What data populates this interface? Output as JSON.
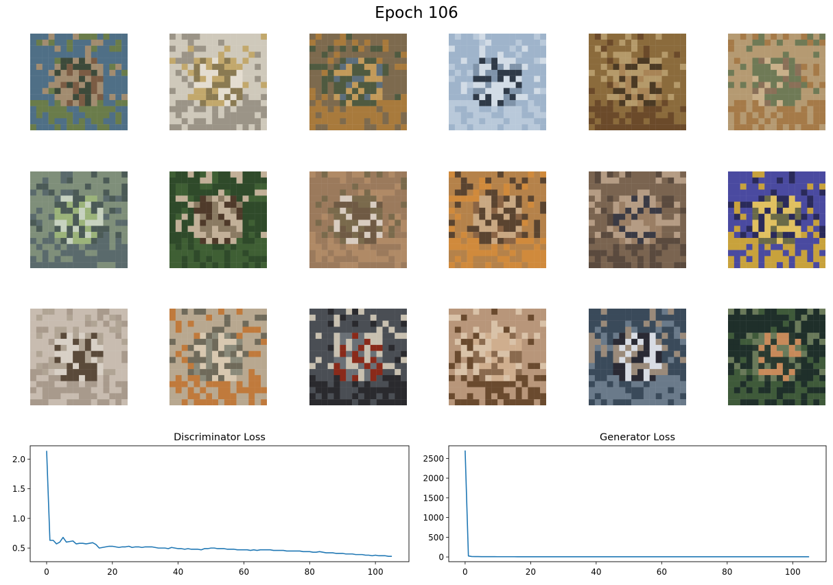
{
  "figure": {
    "title": "Epoch 106"
  },
  "samples": {
    "rows": [
      [
        {
          "palette": [
            "#4f6f86",
            "#6a7c4a",
            "#7b5c44",
            "#3d4a3a",
            "#a28c70"
          ]
        },
        {
          "palette": [
            "#cfc9bb",
            "#9b9487",
            "#e4ddd0",
            "#8a7a52",
            "#c2a86c"
          ]
        },
        {
          "palette": [
            "#7d6a4e",
            "#a87a3c",
            "#5c6e7c",
            "#c29a5a",
            "#4f5a40"
          ]
        },
        {
          "palette": [
            "#9fb4cb",
            "#b9c9da",
            "#2f3a48",
            "#7f93a9",
            "#d2dce6"
          ]
        },
        {
          "palette": [
            "#8b6b3c",
            "#6b4a2a",
            "#a88456",
            "#4b3a24",
            "#b59a6a"
          ]
        },
        {
          "palette": [
            "#b59a72",
            "#a57a48",
            "#8a7058",
            "#c9b08a",
            "#6f7a56"
          ]
        }
      ],
      [
        {
          "palette": [
            "#7f8f7a",
            "#5a6a6c",
            "#9bb37a",
            "#c7d2c0",
            "#4b5a56"
          ]
        },
        {
          "palette": [
            "#2f4a2a",
            "#3f5f34",
            "#8a7a62",
            "#4f3a2a",
            "#c2b098"
          ]
        },
        {
          "palette": [
            "#9b7a5c",
            "#b08a66",
            "#6f5a44",
            "#d8ccc0",
            "#7a6a4c"
          ]
        },
        {
          "palette": [
            "#b5824a",
            "#d08a3c",
            "#8a6444",
            "#c9a882",
            "#5a4430"
          ]
        },
        {
          "palette": [
            "#7a6450",
            "#5a4a3e",
            "#9a7e64",
            "#3a3a44",
            "#b59c84"
          ]
        },
        {
          "palette": [
            "#4a4aa0",
            "#c8a23c",
            "#6a6a48",
            "#e0c060",
            "#2a2a5a"
          ]
        }
      ],
      [
        {
          "palette": [
            "#c8bcb0",
            "#a89a8c",
            "#d8d0c6",
            "#5a4a3a",
            "#b0a494"
          ]
        },
        {
          "palette": [
            "#b8a890",
            "#c07a3c",
            "#8a8a7a",
            "#d8c8b0",
            "#6f6a5a"
          ]
        },
        {
          "palette": [
            "#4a4e54",
            "#2a2a2e",
            "#8a2a1a",
            "#6a7076",
            "#c8c0b0"
          ]
        },
        {
          "palette": [
            "#b8967a",
            "#6a4a2e",
            "#cfae8e",
            "#8a6a4e",
            "#d9c2a8"
          ]
        },
        {
          "palette": [
            "#3a4a5a",
            "#6a7a8a",
            "#d8dce4",
            "#2a2a34",
            "#9a8a7a"
          ]
        },
        {
          "palette": [
            "#1f2f2a",
            "#3f5a3a",
            "#c88a5a",
            "#2a3a30",
            "#6a7a5a"
          ]
        }
      ]
    ]
  },
  "chart_data": [
    {
      "type": "line",
      "title": "Discriminator Loss",
      "xlabel": "",
      "ylabel": "",
      "xlim": [
        -5,
        110.2
      ],
      "ylim": [
        0.27,
        2.225
      ],
      "xticks": [
        0,
        20,
        40,
        60,
        80,
        100
      ],
      "yticks": [
        0.5,
        1.0,
        1.5,
        2.0
      ],
      "ytick_labels": [
        "0.5",
        "1.0",
        "1.5",
        "2.0"
      ],
      "color": "#1f77b4",
      "x": [
        0,
        1,
        2,
        3,
        4,
        5,
        6,
        7,
        8,
        9,
        10,
        11,
        12,
        13,
        14,
        15,
        16,
        17,
        18,
        19,
        20,
        21,
        22,
        23,
        24,
        25,
        26,
        27,
        28,
        29,
        30,
        31,
        32,
        33,
        34,
        35,
        36,
        37,
        38,
        39,
        40,
        41,
        42,
        43,
        44,
        45,
        46,
        47,
        48,
        49,
        50,
        51,
        52,
        53,
        54,
        55,
        56,
        57,
        58,
        59,
        60,
        61,
        62,
        63,
        64,
        65,
        66,
        67,
        68,
        69,
        70,
        71,
        72,
        73,
        74,
        75,
        76,
        77,
        78,
        79,
        80,
        81,
        82,
        83,
        84,
        85,
        86,
        87,
        88,
        89,
        90,
        91,
        92,
        93,
        94,
        95,
        96,
        97,
        98,
        99,
        100,
        101,
        102,
        103,
        104,
        105
      ],
      "y": [
        2.14,
        0.63,
        0.63,
        0.57,
        0.6,
        0.68,
        0.6,
        0.61,
        0.62,
        0.57,
        0.58,
        0.58,
        0.57,
        0.58,
        0.59,
        0.56,
        0.5,
        0.51,
        0.52,
        0.53,
        0.53,
        0.52,
        0.51,
        0.52,
        0.52,
        0.53,
        0.51,
        0.52,
        0.52,
        0.51,
        0.52,
        0.52,
        0.52,
        0.51,
        0.5,
        0.5,
        0.5,
        0.49,
        0.51,
        0.5,
        0.49,
        0.49,
        0.48,
        0.49,
        0.48,
        0.48,
        0.48,
        0.47,
        0.49,
        0.49,
        0.5,
        0.5,
        0.49,
        0.49,
        0.49,
        0.48,
        0.48,
        0.48,
        0.47,
        0.47,
        0.47,
        0.47,
        0.46,
        0.47,
        0.46,
        0.47,
        0.47,
        0.47,
        0.47,
        0.46,
        0.46,
        0.46,
        0.46,
        0.45,
        0.45,
        0.45,
        0.45,
        0.45,
        0.44,
        0.44,
        0.44,
        0.43,
        0.43,
        0.44,
        0.43,
        0.42,
        0.42,
        0.42,
        0.41,
        0.41,
        0.41,
        0.4,
        0.4,
        0.4,
        0.39,
        0.39,
        0.39,
        0.38,
        0.38,
        0.37,
        0.38,
        0.37,
        0.37,
        0.37,
        0.36,
        0.36
      ]
    },
    {
      "type": "line",
      "title": "Generator Loss",
      "xlabel": "",
      "ylabel": "",
      "xlim": [
        -5,
        110.2
      ],
      "ylim": [
        -120,
        2820
      ],
      "xticks": [
        0,
        20,
        40,
        60,
        80,
        100
      ],
      "yticks": [
        0,
        500,
        1000,
        1500,
        2000,
        2500
      ],
      "ytick_labels": [
        "0",
        "500",
        "1000",
        "1500",
        "2000",
        "2500"
      ],
      "color": "#1f77b4",
      "x": [
        0,
        1,
        2,
        3,
        4,
        5,
        6,
        7,
        8,
        9,
        10,
        11,
        12,
        13,
        14,
        15,
        16,
        17,
        18,
        19,
        20,
        21,
        22,
        23,
        24,
        25,
        26,
        27,
        28,
        29,
        30,
        31,
        32,
        33,
        34,
        35,
        36,
        37,
        38,
        39,
        40,
        41,
        42,
        43,
        44,
        45,
        46,
        47,
        48,
        49,
        50,
        51,
        52,
        53,
        54,
        55,
        56,
        57,
        58,
        59,
        60,
        61,
        62,
        63,
        64,
        65,
        66,
        67,
        68,
        69,
        70,
        71,
        72,
        73,
        74,
        75,
        76,
        77,
        78,
        79,
        80,
        81,
        82,
        83,
        84,
        85,
        86,
        87,
        88,
        89,
        90,
        91,
        92,
        93,
        94,
        95,
        96,
        97,
        98,
        99,
        100,
        101,
        102,
        103,
        104,
        105
      ],
      "y": [
        2700,
        25,
        12,
        10,
        9,
        8,
        8,
        7,
        7,
        7,
        6,
        6,
        6,
        6,
        6,
        6,
        5,
        5,
        5,
        5,
        5,
        5,
        5,
        5,
        5,
        5,
        5,
        5,
        5,
        5,
        5,
        5,
        5,
        5,
        5,
        5,
        5,
        5,
        5,
        5,
        5,
        5,
        5,
        5,
        5,
        5,
        5,
        5,
        5,
        5,
        5,
        5,
        5,
        5,
        5,
        5,
        5,
        5,
        5,
        5,
        5,
        5,
        5,
        5,
        5,
        5,
        5,
        5,
        5,
        5,
        5,
        5,
        5,
        5,
        5,
        5,
        5,
        5,
        5,
        5,
        5,
        5,
        5,
        5,
        5,
        5,
        5,
        5,
        5,
        5,
        5,
        5,
        5,
        5,
        5,
        5,
        5,
        5,
        5,
        5,
        5,
        5,
        5,
        5,
        5,
        5
      ]
    }
  ]
}
